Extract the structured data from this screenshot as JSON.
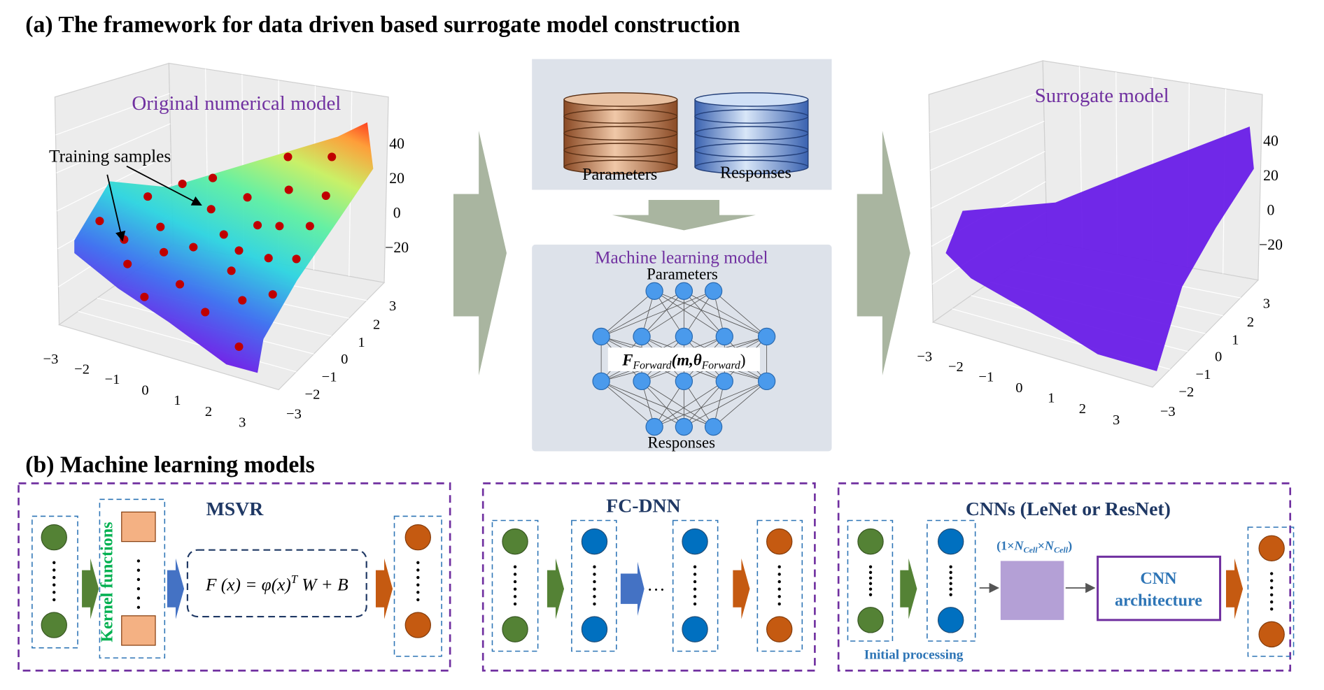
{
  "panel_a": {
    "title": "(a) The framework for data driven based surrogate model construction",
    "original_model": {
      "label": "Original numerical model",
      "annotation": "Training samples",
      "z_ticks": [
        "40",
        "20",
        "0",
        "−20"
      ],
      "x_ticks": [
        "−3",
        "−2",
        "−1",
        "0",
        "1",
        "2",
        "3"
      ],
      "y_ticks": [
        "3",
        "2",
        "1",
        "0",
        "−1",
        "−2",
        "−3"
      ]
    },
    "database": {
      "parameters": "Parameters",
      "responses": "Responses"
    },
    "ml_model": {
      "title": "Machine learning model",
      "input": "Parameters",
      "output": "Responses",
      "formula": {
        "main": "F",
        "sub": "Forward",
        "args": "(m,θ",
        "args_sub": "Forward",
        "close": ")"
      }
    },
    "surrogate_model": {
      "label": "Surrogate model",
      "z_ticks": [
        "40",
        "20",
        "0",
        "−20"
      ],
      "x_ticks": [
        "−3",
        "−2",
        "−1",
        "0",
        "1",
        "2",
        "3"
      ],
      "y_ticks": [
        "3",
        "2",
        "1",
        "0",
        "−1",
        "−2",
        "−3"
      ]
    }
  },
  "panel_b": {
    "title": "(b) Machine learning models",
    "msvr": {
      "title": "MSVR",
      "kernel": "Kernel functions",
      "formula": {
        "lhs": "F (x) = φ(x)",
        "sup": "T",
        "rhs": "W + B"
      }
    },
    "fc_dnn": {
      "title": "FC-DNN",
      "ellipsis": "···"
    },
    "cnns": {
      "title": "CNNs (LeNet or ResNet)",
      "shape": {
        "open": "(1×",
        "n1": "N",
        "s1": "Cell",
        "x": "×",
        "n2": "N",
        "s2": "Cell",
        "close": ")"
      },
      "architecture": [
        "CNN",
        "architecture"
      ],
      "initial": "Initial processing"
    }
  }
}
